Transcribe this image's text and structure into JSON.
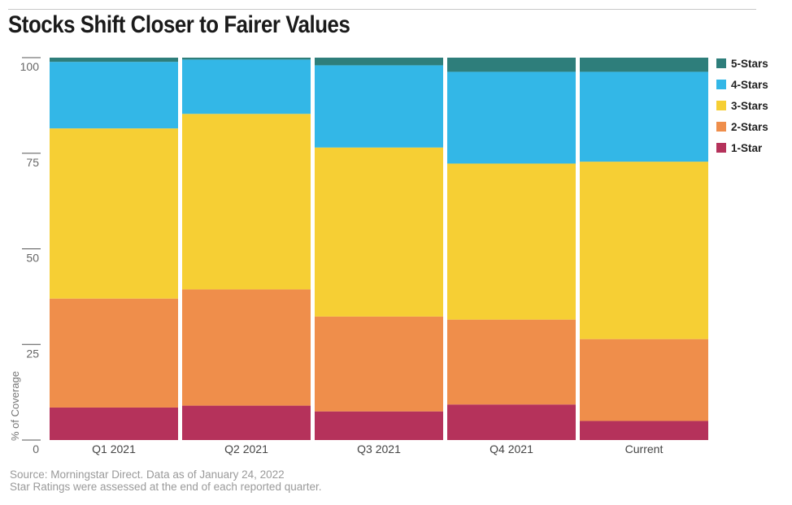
{
  "title": "Stocks Shift Closer to Fairer Values",
  "footer": {
    "line1": "Source: Morningstar Direct. Data as of January 24, 2022",
    "line2": "Star Ratings were assessed at the end of each reported quarter."
  },
  "chart_data": {
    "type": "bar",
    "stacked": true,
    "title": "Stocks Shift Closer to Fairer Values",
    "xlabel": "",
    "ylabel": "% of Coverage",
    "ylim": [
      0,
      100
    ],
    "yticks": [
      0,
      25,
      50,
      75,
      100
    ],
    "categories": [
      "Q1 2021",
      "Q2 2021",
      "Q3 2021",
      "Q4 2021",
      "Current"
    ],
    "series": [
      {
        "name": "1-Star",
        "color": "#b5325b",
        "values": [
          8.5,
          9.0,
          7.5,
          9.3,
          5.0
        ]
      },
      {
        "name": "2-Stars",
        "color": "#ef8e4b",
        "values": [
          28.5,
          30.4,
          24.8,
          22.2,
          21.4
        ]
      },
      {
        "name": "3-Stars",
        "color": "#f6cf34",
        "values": [
          44.5,
          45.9,
          44.2,
          40.8,
          46.4
        ]
      },
      {
        "name": "4-Stars",
        "color": "#33b7e7",
        "values": [
          17.4,
          14.2,
          21.5,
          24.0,
          23.5
        ]
      },
      {
        "name": "5-Stars",
        "color": "#2e7e7b",
        "values": [
          1.1,
          0.5,
          2.0,
          3.7,
          3.7
        ]
      }
    ],
    "legend_position": "right",
    "legend_order": [
      "5-Stars",
      "4-Stars",
      "3-Stars",
      "2-Stars",
      "1-Star"
    ],
    "grid": false
  }
}
